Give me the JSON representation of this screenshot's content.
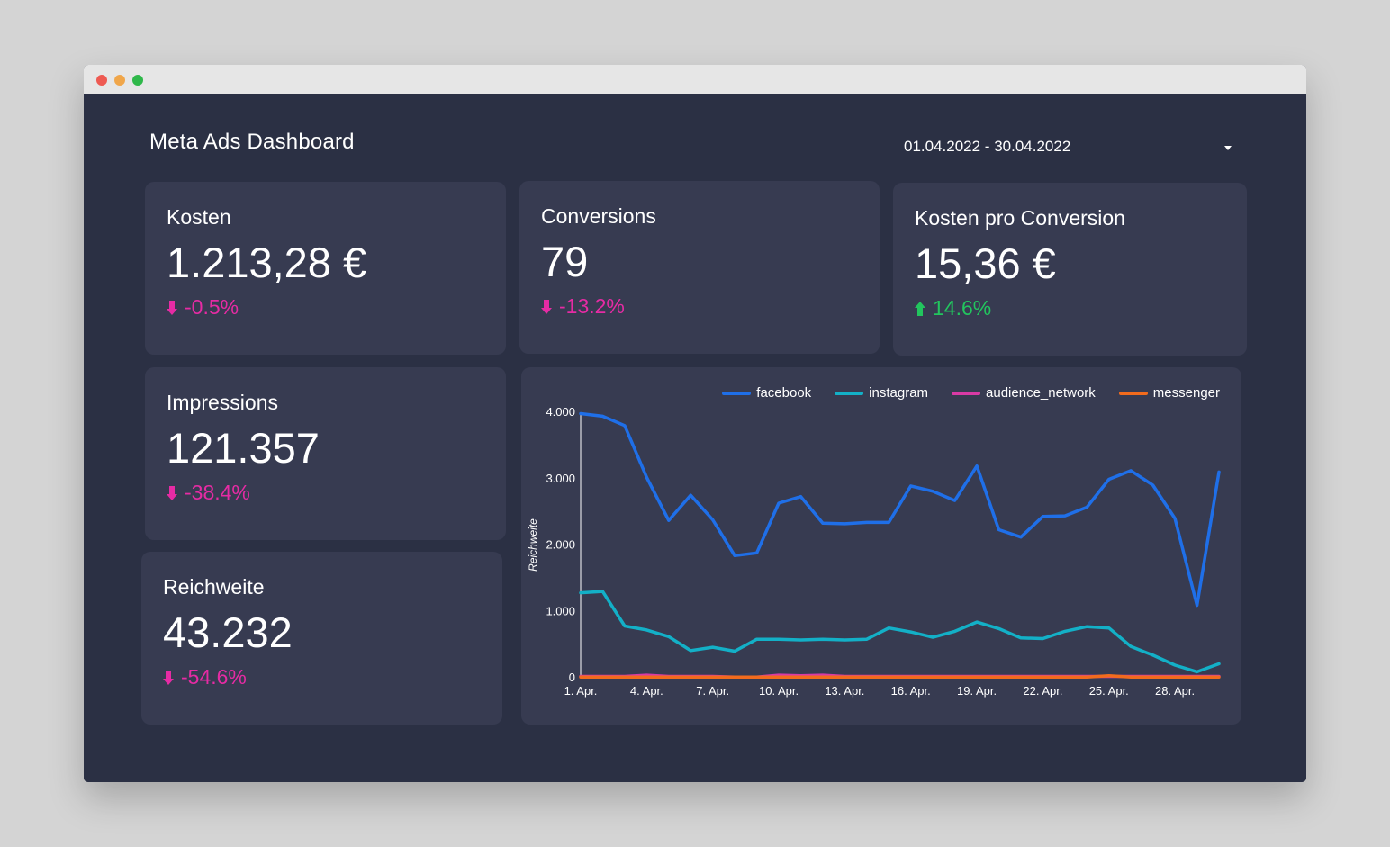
{
  "header": {
    "title": "Meta Ads Dashboard",
    "date_range": "01.04.2022 - 30.04.2022"
  },
  "colors": {
    "background": "#2b3044",
    "card": "#373b51",
    "negative": "#e62ba4",
    "positive": "#22c55e",
    "facebook": "#1f6fe8",
    "instagram": "#13b0c7",
    "audience_network": "#d93aa5",
    "messenger": "#f26b1d"
  },
  "kpis": {
    "kosten": {
      "label": "Kosten",
      "value": "1.213,28 €",
      "delta": "-0.5%",
      "direction": "down"
    },
    "conversions": {
      "label": "Conversions",
      "value": "79",
      "delta": "-13.2%",
      "direction": "down"
    },
    "kpc": {
      "label": "Kosten pro Conversion",
      "value": "15,36 €",
      "delta": "14.6%",
      "direction": "up"
    },
    "impressions": {
      "label": "Impressions",
      "value": "121.357",
      "delta": "-38.4%",
      "direction": "down"
    },
    "reichweite": {
      "label": "Reichweite",
      "value": "43.232",
      "delta": "-54.6%",
      "direction": "down"
    }
  },
  "chart_data": {
    "type": "line",
    "ylabel": "Reichweite",
    "xlabel": "",
    "ylim": [
      0,
      4000
    ],
    "y_ticks": [
      0,
      1000,
      2000,
      3000,
      4000
    ],
    "y_tick_labels": [
      "0",
      "1.000",
      "2.000",
      "3.000",
      "4.000"
    ],
    "x": [
      "1. Apr.",
      "2. Apr.",
      "3. Apr.",
      "4. Apr.",
      "5. Apr.",
      "6. Apr.",
      "7. Apr.",
      "8. Apr.",
      "9. Apr.",
      "10. Apr.",
      "11. Apr.",
      "12. Apr.",
      "13. Apr.",
      "14. Apr.",
      "15. Apr.",
      "16. Apr.",
      "17. Apr.",
      "18. Apr.",
      "19. Apr.",
      "20. Apr.",
      "21. Apr.",
      "22. Apr.",
      "23. Apr.",
      "24. Apr.",
      "25. Apr.",
      "26. Apr.",
      "27. Apr.",
      "28. Apr.",
      "29. Apr.",
      "30. Apr."
    ],
    "x_tick_labels": [
      "1. Apr.",
      "4. Apr.",
      "7. Apr.",
      "10. Apr.",
      "13. Apr.",
      "16. Apr.",
      "19. Apr.",
      "22. Apr.",
      "25. Apr.",
      "28. Apr."
    ],
    "legend_position": "top-right",
    "grid": false,
    "series": [
      {
        "name": "facebook",
        "values": [
          3980,
          3940,
          3800,
          3020,
          2370,
          2750,
          2380,
          1840,
          1880,
          2630,
          2730,
          2330,
          2320,
          2340,
          2340,
          2890,
          2810,
          2670,
          3190,
          2230,
          2120,
          2430,
          2440,
          2570,
          2990,
          3120,
          2900,
          2400,
          1090,
          3100
        ]
      },
      {
        "name": "instagram",
        "values": [
          1280,
          1300,
          780,
          720,
          620,
          410,
          460,
          400,
          580,
          580,
          570,
          580,
          570,
          580,
          750,
          690,
          610,
          700,
          840,
          740,
          600,
          590,
          700,
          770,
          750,
          470,
          340,
          190,
          90,
          210
        ]
      },
      {
        "name": "audience_network",
        "values": [
          20,
          20,
          20,
          40,
          20,
          20,
          20,
          10,
          10,
          40,
          30,
          40,
          20,
          20,
          20,
          20,
          20,
          20,
          20,
          20,
          20,
          20,
          20,
          20,
          20,
          20,
          20,
          20,
          20,
          20
        ]
      },
      {
        "name": "messenger",
        "values": [
          10,
          10,
          10,
          10,
          10,
          10,
          10,
          10,
          10,
          10,
          10,
          10,
          10,
          10,
          10,
          10,
          10,
          10,
          10,
          10,
          10,
          10,
          10,
          10,
          30,
          10,
          10,
          10,
          10,
          10
        ]
      }
    ]
  }
}
